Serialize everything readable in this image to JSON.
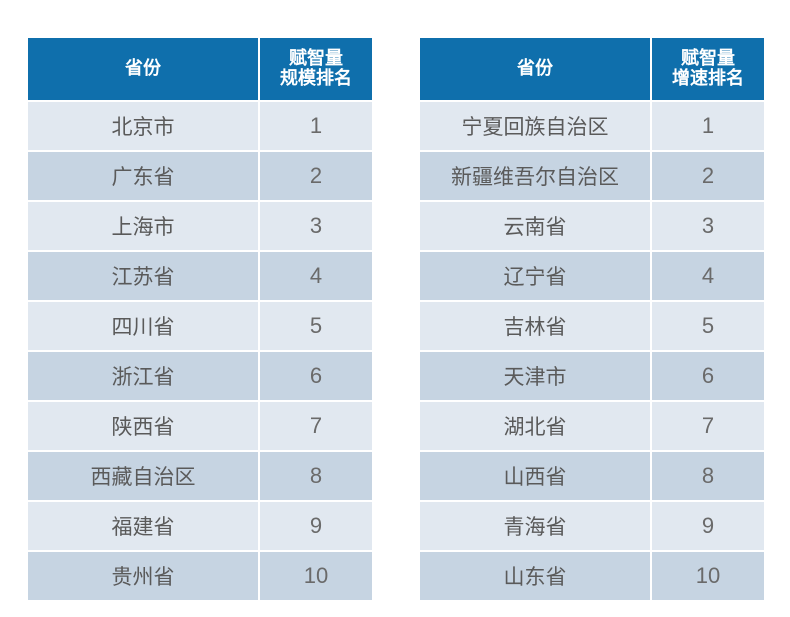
{
  "left_table": {
    "header_province": "省份",
    "header_rank_line1": "赋智量",
    "header_rank_line2": "规模排名",
    "rows": [
      {
        "province": "北京市",
        "rank": "1"
      },
      {
        "province": "广东省",
        "rank": "2"
      },
      {
        "province": "上海市",
        "rank": "3"
      },
      {
        "province": "江苏省",
        "rank": "4"
      },
      {
        "province": "四川省",
        "rank": "5"
      },
      {
        "province": "浙江省",
        "rank": "6"
      },
      {
        "province": "陕西省",
        "rank": "7"
      },
      {
        "province": "西藏自治区",
        "rank": "8"
      },
      {
        "province": "福建省",
        "rank": "9"
      },
      {
        "province": "贵州省",
        "rank": "10"
      }
    ]
  },
  "right_table": {
    "header_province": "省份",
    "header_rank_line1": "赋智量",
    "header_rank_line2": "增速排名",
    "rows": [
      {
        "province": "宁夏回族自治区",
        "rank": "1"
      },
      {
        "province": "新疆维吾尔自治区",
        "rank": "2"
      },
      {
        "province": "云南省",
        "rank": "3"
      },
      {
        "province": "辽宁省",
        "rank": "4"
      },
      {
        "province": "吉林省",
        "rank": "5"
      },
      {
        "province": "天津市",
        "rank": "6"
      },
      {
        "province": "湖北省",
        "rank": "7"
      },
      {
        "province": "山西省",
        "rank": "8"
      },
      {
        "province": "青海省",
        "rank": "9"
      },
      {
        "province": "山东省",
        "rank": "10"
      }
    ]
  },
  "colors": {
    "header_bg": "#0f6fac",
    "row_light": "#e1e8f0",
    "row_dark": "#c6d4e2",
    "text": "#5a5a5a"
  }
}
